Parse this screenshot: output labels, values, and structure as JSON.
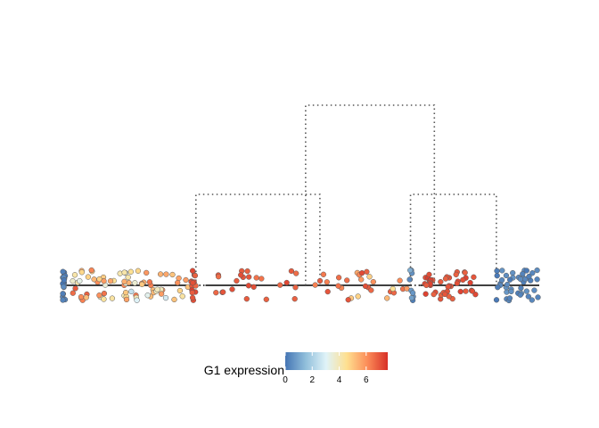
{
  "chart_data": {
    "type": "scatter",
    "title": "",
    "xlabel": "",
    "ylabel": "",
    "description_type": "dendrogram-trajectory-jitter",
    "grid": false,
    "legend": {
      "title": "G1 expression",
      "placement": "bottom",
      "ticks": [
        0,
        2,
        4,
        6
      ],
      "tick_labels": [
        "0",
        "2",
        "4",
        "6"
      ],
      "range": [
        0,
        7.6
      ],
      "colors": [
        "#4575b4",
        "#91bfdb",
        "#e0f3f8",
        "#fee090",
        "#fc8d59",
        "#d73027"
      ]
    },
    "x_range": [
      0,
      100
    ],
    "tree": {
      "segments": [
        {
          "from": 0,
          "to": 27,
          "style": "solid"
        },
        {
          "from": 27,
          "to": 30,
          "style": "dotted"
        },
        {
          "from": 30,
          "to": 73,
          "style": "solid"
        },
        {
          "from": 73,
          "to": 75,
          "style": "dotted"
        },
        {
          "from": 75,
          "to": 100,
          "style": "solid"
        }
      ],
      "branches": [
        {
          "left": 28,
          "right": 54,
          "level": 1
        },
        {
          "left": 73,
          "right": 91,
          "level": 1
        },
        {
          "left": 51,
          "right": 78,
          "level": 2
        }
      ]
    },
    "clusters": [
      {
        "x0": 0.0,
        "x1": 0.6,
        "values": [
          0.1,
          0.3,
          0.2,
          0.4,
          0.0,
          0.5,
          0.2,
          0.3,
          0.1,
          0.4,
          0.2,
          0.3,
          0.0,
          0.1,
          0.5,
          0.2,
          0.3,
          0.4,
          0.1,
          0.2
        ]
      },
      {
        "x0": 2,
        "x1": 27,
        "values": [
          4.5,
          5.0,
          3.8,
          4.2,
          5.5,
          6.0,
          4.8,
          3.5,
          4.1,
          5.2,
          5.8,
          6.2,
          4.0,
          3.6,
          4.9,
          5.4,
          6.5,
          5.1,
          4.3,
          3.9,
          4.7,
          5.6,
          6.1,
          5.3,
          4.4,
          3.7,
          5.9,
          6.3,
          4.6,
          5.0,
          6.8,
          5.7,
          4.2,
          3.8,
          5.2,
          6.0,
          4.9,
          5.5,
          6.4,
          5.1,
          4.5,
          3.5,
          3.3,
          4.8,
          5.6,
          6.2,
          5.9,
          4.1,
          5.4,
          6.6,
          5.0,
          4.3,
          3.9,
          5.8,
          6.1,
          4.7,
          5.3,
          6.9,
          5.5,
          4.0,
          3.6,
          5.2,
          6.3,
          4.8,
          5.7,
          6.0,
          2.5,
          2.8,
          3.0,
          3.2,
          4.2,
          5.1,
          6.5,
          5.8
        ]
      },
      {
        "x0": 27,
        "x1": 28,
        "values": [
          7.0,
          7.2,
          6.8,
          7.1,
          7.3,
          6.9,
          7.0,
          7.2,
          6.7,
          7.1,
          7.4,
          6.9,
          7.0,
          7.2,
          6.8,
          7.1
        ]
      },
      {
        "x0": 31,
        "x1": 51,
        "values": [
          6.8,
          7.0,
          6.5,
          7.2,
          6.9,
          6.7,
          7.1,
          6.6,
          7.0,
          6.8,
          7.3,
          6.9,
          6.5,
          7.0,
          6.7,
          7.1,
          6.8,
          6.9,
          7.2,
          6.6,
          7.0,
          6.8,
          6.9,
          7.1
        ]
      },
      {
        "x0": 53,
        "x1": 73,
        "values": [
          6.5,
          6.8,
          6.2,
          7.0,
          5.8,
          6.6,
          6.9,
          6.3,
          6.7,
          7.1,
          6.0,
          6.4,
          5.0,
          5.3,
          4.8,
          5.6,
          6.1,
          6.6,
          6.9,
          7.0,
          4.5,
          6.8,
          6.2,
          5.9,
          6.5,
          4.9,
          6.7,
          7.2,
          6.3
        ]
      },
      {
        "x0": 72.8,
        "x1": 73.6,
        "values": [
          0.4,
          0.6,
          0.3,
          0.8,
          0.5,
          1.2,
          0.2,
          0.7,
          0.9,
          0.4
        ]
      },
      {
        "x0": 76,
        "x1": 87,
        "values": [
          6.9,
          7.2,
          7.0,
          6.8,
          7.3,
          7.1,
          6.9,
          7.4,
          7.0,
          6.8,
          7.2,
          7.1,
          6.9,
          7.3,
          7.0,
          6.8,
          7.2,
          7.1,
          6.9,
          7.0,
          7.3,
          7.1,
          6.8,
          7.2,
          7.0,
          6.9,
          7.1,
          7.3,
          7.0,
          6.8,
          7.2,
          7.1,
          6.9,
          7.0,
          7.3,
          7.1,
          6.8,
          7.2,
          7.0,
          6.9,
          7.1,
          7.3,
          7.0,
          6.8
        ]
      },
      {
        "x0": 91,
        "x1": 100,
        "values": [
          0.3,
          0.5,
          0.2,
          0.6,
          0.4,
          0.1,
          0.5,
          0.3,
          0.7,
          0.2,
          0.4,
          0.6,
          0.3,
          0.5,
          0.1,
          0.4,
          0.2,
          0.6,
          0.3,
          0.5,
          0.4,
          0.2,
          0.6,
          0.3,
          0.5,
          0.1,
          0.4,
          0.2,
          0.6,
          0.3,
          0.5,
          0.4,
          0.2,
          0.6,
          0.3,
          0.5,
          0.1,
          0.4,
          0.2,
          0.6,
          0.3,
          0.5
        ]
      }
    ]
  }
}
